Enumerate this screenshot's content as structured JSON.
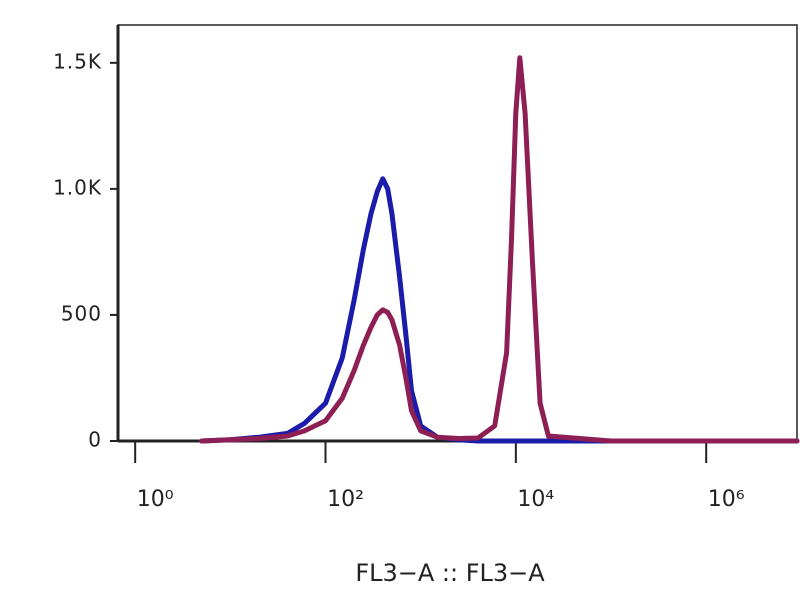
{
  "chart_data": {
    "type": "line",
    "x_label": "FL3−A :: FL3−A",
    "x": [
      5,
      10,
      20,
      40,
      60,
      100,
      150,
      200,
      250,
      300,
      350,
      400,
      450,
      500,
      600,
      700,
      800,
      1000,
      1500,
      2500,
      4000,
      6000,
      8000,
      9000,
      10000,
      11000,
      12500,
      15000,
      18000,
      22000,
      100000,
      1000000,
      9000000
    ],
    "series": [
      {
        "color": "#1c1caa",
        "values": [
          0,
          5,
          15,
          30,
          70,
          150,
          330,
          560,
          760,
          900,
          990,
          1040,
          1000,
          900,
          650,
          420,
          200,
          60,
          15,
          5,
          0,
          0,
          0,
          0,
          0,
          0,
          0,
          0,
          0,
          0,
          0,
          0,
          0
        ]
      },
      {
        "color": "#8e1f55",
        "values": [
          0,
          5,
          10,
          20,
          40,
          80,
          170,
          280,
          380,
          450,
          500,
          520,
          510,
          480,
          380,
          250,
          120,
          40,
          15,
          10,
          12,
          60,
          350,
          800,
          1300,
          1520,
          1300,
          700,
          150,
          20,
          0,
          0,
          0
        ]
      }
    ],
    "xlog": true,
    "xlim": [
      0.66,
      9000000
    ],
    "xticks": [
      {
        "value": 1,
        "label": "10⁰"
      },
      {
        "value": 100,
        "label": "10²"
      },
      {
        "value": 10000,
        "label": "10⁴"
      },
      {
        "value": 1000000,
        "label": "10⁶"
      }
    ],
    "ylim": [
      0,
      1650
    ],
    "yticks": [
      0,
      500,
      {
        "value": 1000,
        "label": "1.0K"
      },
      {
        "value": 1500,
        "label": "1.5K"
      }
    ]
  }
}
